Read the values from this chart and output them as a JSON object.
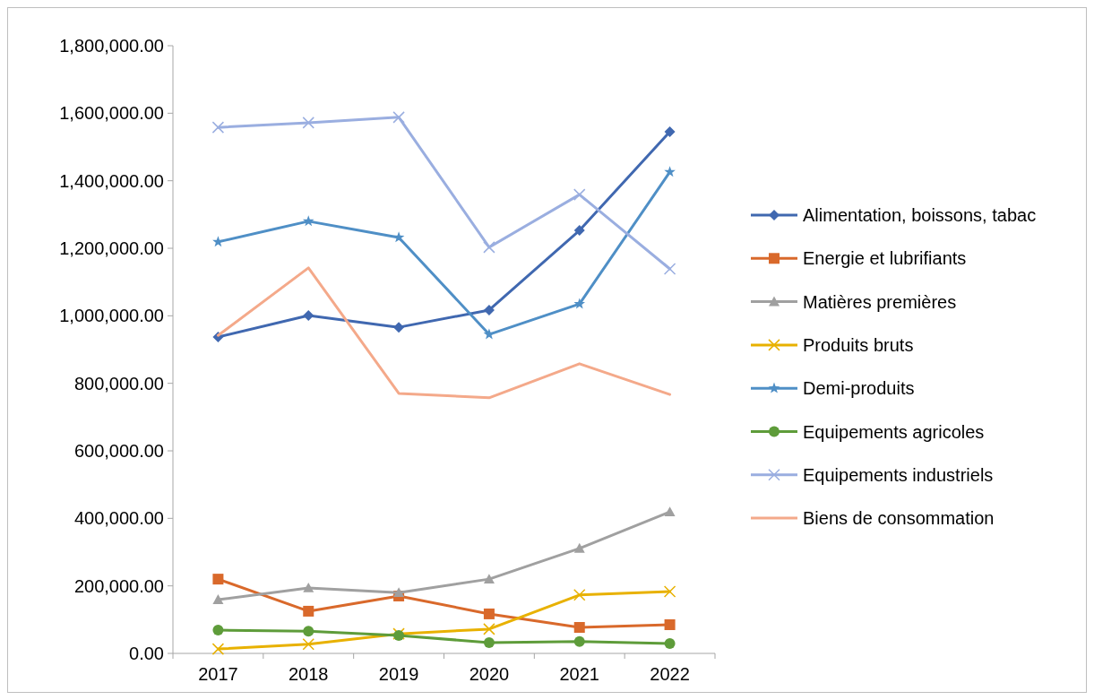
{
  "chart_data": {
    "type": "line",
    "categories": [
      "2017",
      "2018",
      "2019",
      "2020",
      "2021",
      "2022"
    ],
    "ylim": [
      0,
      1800000
    ],
    "yticks": [
      {
        "value": 0,
        "label": "0.00"
      },
      {
        "value": 200000,
        "label": "200,000.00"
      },
      {
        "value": 400000,
        "label": "400,000.00"
      },
      {
        "value": 600000,
        "label": "600,000.00"
      },
      {
        "value": 800000,
        "label": "800,000.00"
      },
      {
        "value": 1000000,
        "label": "1,000,000.00"
      },
      {
        "value": 1200000,
        "label": "1,200,000.00"
      },
      {
        "value": 1400000,
        "label": "1,400,000.00"
      },
      {
        "value": 1600000,
        "label": "1,600,000.00"
      },
      {
        "value": 1800000,
        "label": "1,800,000.00"
      }
    ],
    "grid": false,
    "legend": "right",
    "series": [
      {
        "name": "Alimentation, boissons, tabac",
        "color": "#4068b0",
        "marker": "diamond",
        "values": [
          937000,
          1001000,
          966000,
          1017000,
          1253000,
          1545000
        ]
      },
      {
        "name": "Energie et lubrifiants",
        "color": "#d9692b",
        "marker": "square",
        "values": [
          220000,
          125000,
          170000,
          117000,
          77000,
          85000
        ]
      },
      {
        "name": "Matières premières",
        "color": "#a0a0a0",
        "marker": "triangle",
        "values": [
          159000,
          194000,
          180000,
          220000,
          311000,
          419000
        ]
      },
      {
        "name": "Produits bruts",
        "color": "#e8b100",
        "marker": "cross",
        "values": [
          13000,
          27000,
          58000,
          72000,
          173000,
          183000
        ]
      },
      {
        "name": "Demi-produits",
        "color": "#4f8fc6",
        "marker": "star",
        "values": [
          1219000,
          1280000,
          1232000,
          945000,
          1035000,
          1426000
        ]
      },
      {
        "name": "Equipements agricoles",
        "color": "#5e9c3a",
        "marker": "circle",
        "values": [
          69000,
          66000,
          53000,
          32000,
          35000,
          29000
        ]
      },
      {
        "name": "Equipements industriels",
        "color": "#9aaee0",
        "marker": "cross",
        "values": [
          1558000,
          1572000,
          1588000,
          1203000,
          1359000,
          1139000
        ]
      },
      {
        "name": "Biens de consommation",
        "color": "#f4a98a",
        "marker": "none",
        "values": [
          942000,
          1142000,
          770000,
          757000,
          858000,
          767000
        ]
      }
    ]
  }
}
